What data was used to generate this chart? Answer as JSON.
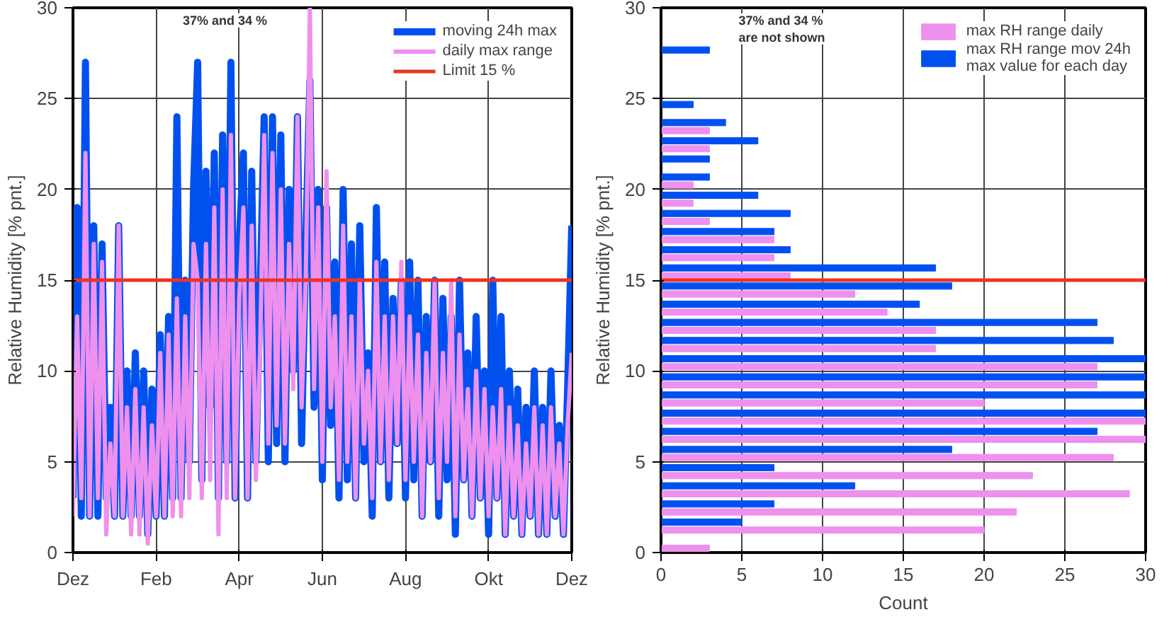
{
  "chart_data": [
    {
      "type": "line",
      "ylabel": "Relative Humidity [% pnt.]",
      "ylim": [
        0,
        30
      ],
      "yticks": [
        0,
        5,
        10,
        15,
        20,
        25,
        30
      ],
      "categories": [
        "Dez",
        null,
        null,
        null,
        null,
        null,
        null,
        null,
        null,
        null,
        null,
        null,
        null,
        null,
        null,
        null,
        null,
        null,
        null,
        null,
        "Feb",
        null,
        null,
        null,
        null,
        null,
        null,
        null,
        null,
        null,
        null,
        null,
        null,
        null,
        null,
        null,
        null,
        null,
        null,
        null,
        "Apr",
        null,
        null,
        null,
        null,
        null,
        null,
        null,
        null,
        null,
        null,
        null,
        null,
        null,
        null,
        null,
        null,
        null,
        null,
        null,
        "Jun",
        null,
        null,
        null,
        null,
        null,
        null,
        null,
        null,
        null,
        null,
        null,
        null,
        null,
        null,
        null,
        null,
        null,
        null,
        null,
        "Aug",
        null,
        null,
        null,
        null,
        null,
        null,
        null,
        null,
        null,
        null,
        null,
        null,
        null,
        null,
        null,
        null,
        null,
        null,
        null,
        "Okt",
        null,
        null,
        null,
        null,
        null,
        null,
        null,
        null,
        null,
        null,
        null,
        null,
        null,
        null,
        null,
        null,
        null,
        null,
        null,
        "Dez"
      ],
      "series": [
        {
          "name": "moving 24h max",
          "color": "#0050f0",
          "values": [
            3,
            19,
            2,
            27,
            2,
            18,
            2,
            17,
            3,
            8,
            2,
            18,
            2,
            10,
            2,
            11,
            2,
            10,
            1,
            9,
            2,
            12,
            2,
            13,
            3,
            24,
            3,
            15,
            5,
            20,
            27,
            4,
            21,
            8,
            22,
            3,
            23,
            5,
            27,
            3,
            17,
            22,
            3,
            21,
            5,
            14,
            24,
            5,
            24,
            6,
            23,
            5,
            20,
            10,
            24,
            6,
            17,
            26,
            8,
            20,
            4,
            19,
            7,
            16,
            3,
            20,
            4,
            17,
            3,
            18,
            5,
            11,
            2,
            19,
            5,
            16,
            3,
            14,
            6,
            15,
            3,
            16,
            4,
            15,
            2,
            13,
            5,
            15,
            2,
            14,
            4,
            13,
            1,
            15,
            4,
            11,
            2,
            13,
            3,
            10,
            1,
            15,
            3,
            13,
            1,
            10,
            2,
            9,
            1,
            8,
            2,
            10,
            1,
            8,
            1,
            10,
            2,
            7,
            1,
            9,
            18
          ]
        },
        {
          "name": "daily max range",
          "color": "#ee90ee",
          "values": [
            2,
            13,
            3,
            22,
            2,
            17,
            3,
            16,
            1,
            6,
            2,
            18,
            2,
            8,
            1,
            9,
            1,
            8,
            0.5,
            7,
            2,
            11,
            2,
            12,
            2,
            14,
            2,
            13,
            3,
            17,
            15,
            3,
            17,
            4,
            19,
            1,
            20,
            3,
            23,
            3,
            14,
            19,
            3,
            18,
            4,
            11,
            23,
            6,
            22,
            7,
            20,
            6,
            17,
            9,
            24,
            8,
            15,
            30,
            9,
            19,
            5,
            21,
            8,
            13,
            4,
            18,
            5,
            13,
            3,
            15,
            6,
            10,
            3,
            16,
            5,
            13,
            4,
            13,
            6,
            16,
            4,
            13,
            5,
            12,
            2,
            11,
            5,
            15,
            3,
            11,
            5,
            15,
            2,
            12,
            4,
            9,
            2,
            10,
            3,
            9,
            2,
            8,
            3,
            9,
            1,
            8,
            2,
            7,
            1,
            6,
            2,
            8,
            1,
            7,
            1,
            8,
            2,
            6,
            1,
            7,
            11
          ]
        }
      ],
      "ref_lines": [
        {
          "axis": "y",
          "value": 15,
          "label": "Limit 15 %",
          "color": "#ee3322"
        }
      ],
      "annotations": [
        "37% and 34 %"
      ],
      "grid": true,
      "legend": "top right"
    },
    {
      "type": "histogram",
      "orientation": "horizontal",
      "xlabel": "Count",
      "ylabel": "Relative Humidity [% pnt.]",
      "xlim": [
        0,
        30
      ],
      "ylim": [
        0,
        30
      ],
      "xticks": [
        0,
        5,
        10,
        15,
        20,
        25,
        30
      ],
      "yticks": [
        0,
        5,
        10,
        15,
        20,
        25,
        30
      ],
      "bins": [
        0,
        1,
        2,
        3,
        4,
        5,
        6,
        7,
        8,
        9,
        10,
        11,
        12,
        13,
        14,
        15,
        16,
        17,
        18,
        19,
        20,
        21,
        22,
        23,
        24,
        25,
        26,
        27,
        28,
        29,
        30
      ],
      "series": [
        {
          "name": "max RH range mov 24h\nmax value for each day",
          "color": "#0050f0",
          "values": [
            0,
            5,
            7,
            12,
            7,
            18,
            27,
            30,
            30,
            30,
            30,
            28,
            27,
            16,
            18,
            17,
            8,
            7,
            8,
            6,
            3,
            3,
            6,
            4,
            2,
            0,
            0,
            3,
            0,
            0
          ]
        },
        {
          "name": "max RH range daily",
          "color": "#ee90ee",
          "values": [
            3,
            20,
            22,
            29,
            23,
            28,
            30,
            30,
            20,
            27,
            27,
            17,
            17,
            14,
            12,
            8,
            7,
            7,
            3,
            2,
            2,
            0,
            3,
            3,
            0,
            0,
            0,
            0,
            0,
            0
          ]
        }
      ],
      "ref_lines": [
        {
          "axis": "y",
          "value": 15,
          "label": null,
          "color": "#ee3322"
        }
      ],
      "annotations": [
        "37% and 34 % are not shown"
      ],
      "grid": true,
      "legend": "top right"
    }
  ]
}
